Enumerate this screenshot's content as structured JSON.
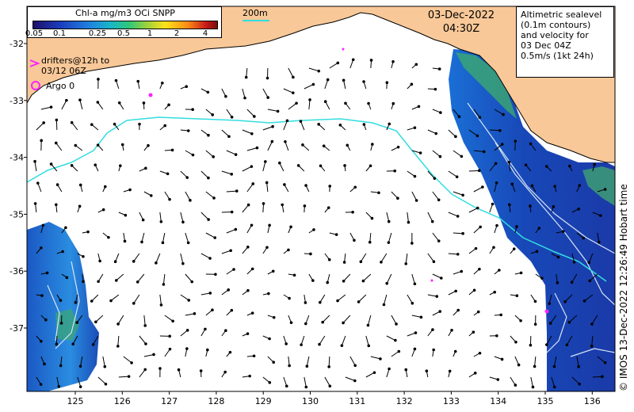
{
  "colorbar": {
    "title": "Chl-a mg/m3 OCi SNPP",
    "ticks": [
      "0.05",
      "0.1",
      "0.25",
      "0.5",
      "1",
      "2",
      "4"
    ]
  },
  "date": "03-Dec-2022",
  "time": "04:30Z",
  "scale_label": "200m",
  "info": {
    "line1": "Altimetric sealevel",
    "line2": "(0.1m contours)",
    "line3": "and velocity for",
    "line4": "03 Dec 04Z",
    "line5": "0.5m/s (1kt 24h)"
  },
  "drifter_legend": {
    "line1": "drifters@12h to",
    "line2": "03/12 06Z"
  },
  "argo_legend": "Argo 0",
  "copyright": "© IMOS 13-Dec-2022 12:26:49 Hobart time",
  "axes": {
    "x_ticks": [
      "125",
      "126",
      "127",
      "128",
      "129",
      "130",
      "131",
      "132",
      "133",
      "134",
      "135",
      "136"
    ],
    "y_ticks": [
      "-32",
      "-33",
      "-34",
      "-35",
      "-36",
      "-37"
    ]
  },
  "colors": {
    "land": "#f8c898",
    "isobath": "#33dde0",
    "drifter": "#ff22ff",
    "arrow": "#000000"
  }
}
